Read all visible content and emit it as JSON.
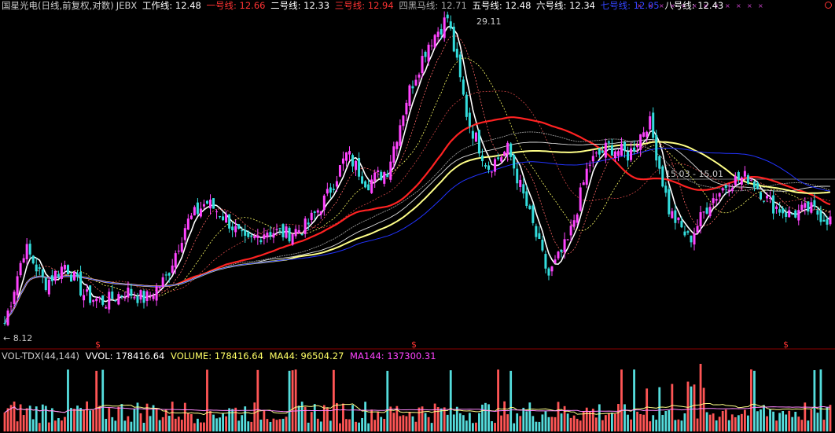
{
  "header": {
    "title": "国星光电(日线,前复权,对数)",
    "indicator": "JEBX",
    "lines": [
      {
        "label": "工作线: 12.48",
        "color": "#ffffff"
      },
      {
        "label": "一号线: 12.66",
        "color": "#ff3333"
      },
      {
        "label": "二号线: 12.33",
        "color": "#ffffff"
      },
      {
        "label": "三号线: 12.94",
        "color": "#ff3333"
      },
      {
        "label": "四黑马线: 12.71",
        "color": "#aaaaaa"
      },
      {
        "label": "五号线: 12.48",
        "color": "#ffffff"
      },
      {
        "label": "六号线: 12.34",
        "color": "#ffffff"
      },
      {
        "label": "七号线: 12.05",
        "color": "#3344ff"
      },
      {
        "label": "八号线: 12.43",
        "color": "#ffffff"
      }
    ]
  },
  "annotations": {
    "high_label": "29.11",
    "low_label": "8.12",
    "range_label": "15.03 - 15.01",
    "signal_marker": "$"
  },
  "volume_header": {
    "indicator": "VOL-TDX(44,144)",
    "items": [
      {
        "label": "VVOL: 178416.64",
        "color": "#ffffff"
      },
      {
        "label": "VOLUME: 178416.64",
        "color": "#ffff66"
      },
      {
        "label": "MA44: 96504.27",
        "color": "#ffff66"
      },
      {
        "label": "MA144: 137300.31",
        "color": "#ff44ff"
      }
    ]
  },
  "colors": {
    "up_candle": "#ff44ff",
    "down_candle": "#33dddd",
    "ma_work": "#ffffff",
    "ma_red": "#ff2222",
    "ma_yellow": "#ffff88",
    "ma_blue": "#2233ff"
  },
  "chart_data": {
    "type": "candlestick",
    "scale": "log",
    "price_high": 29.11,
    "price_low": 8.12,
    "close_path": [
      8.12,
      11.2,
      9.6,
      10.4,
      9.1,
      8.9,
      9.3,
      9.0,
      9.8,
      12.3,
      13.5,
      12.6,
      11.3,
      12.0,
      11.8,
      12.2,
      13.8,
      16.5,
      14.6,
      15.4,
      21.0,
      26.0,
      29.11,
      19.0,
      15.6,
      16.8,
      13.0,
      9.9,
      11.5,
      15.8,
      17.0,
      16.4,
      19.0,
      13.0,
      11.5,
      13.5,
      14.7,
      15.0,
      13.4,
      12.8,
      13.1,
      12.5
    ]
  }
}
